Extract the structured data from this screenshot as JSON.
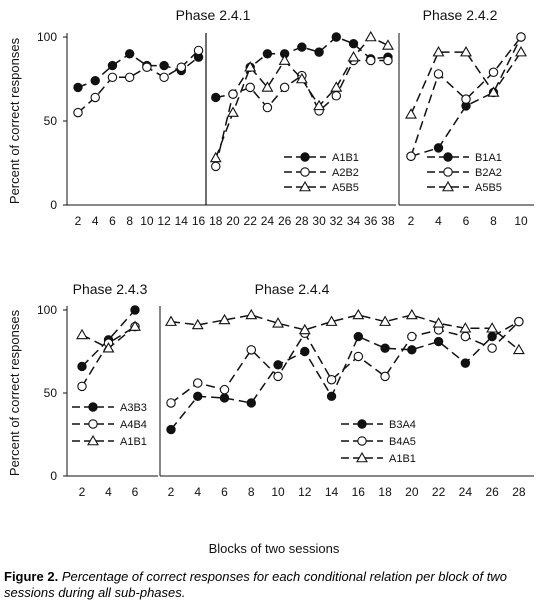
{
  "xlabel": "Blocks of two sessions",
  "caption": {
    "label": "Figure 2.",
    "text": "Percentage of correct responses for each conditional relation per block of two sessions during all sub-phases."
  },
  "chart_data": [
    {
      "type": "line",
      "title": "Phase 2.4.1",
      "ylabel": "Percent of correct responses",
      "ylim": [
        0,
        100
      ],
      "yticks": [
        0,
        50,
        100
      ],
      "x_ticks": [
        2,
        4,
        6,
        8,
        10,
        12,
        14,
        16,
        18,
        20,
        22,
        24,
        26,
        28,
        30,
        32,
        34,
        36,
        38
      ],
      "series": [
        {
          "name": "A1B1",
          "marker": "filled-circle",
          "segments": [
            {
              "x": [
                2,
                4,
                6,
                8,
                10,
                12,
                14,
                16
              ],
              "y": [
                70,
                74,
                83,
                90,
                83,
                83,
                80,
                88
              ]
            },
            {
              "x": [
                18,
                20,
                22,
                24,
                26,
                28,
                30,
                32,
                34,
                36,
                38
              ],
              "y": [
                64,
                66,
                82,
                90,
                90,
                94,
                91,
                100,
                96,
                87,
                88
              ]
            }
          ]
        },
        {
          "name": "A2B2",
          "marker": "open-circle",
          "segments": [
            {
              "x": [
                2,
                4,
                6,
                8,
                10,
                12,
                14,
                16
              ],
              "y": [
                55,
                64,
                76,
                76,
                82,
                76,
                82,
                92
              ]
            },
            {
              "x": [
                18,
                20,
                22,
                24,
                26,
                28,
                30,
                32,
                34,
                36,
                38
              ],
              "y": [
                23,
                66,
                70,
                58,
                70,
                77,
                56,
                65,
                86,
                86,
                86
              ]
            }
          ]
        },
        {
          "name": "A5B5",
          "marker": "open-triangle",
          "segments": [
            {
              "x": [
                18,
                20,
                22,
                24,
                26,
                28,
                30,
                32,
                34,
                36,
                38
              ],
              "y": [
                28,
                55,
                82,
                70,
                86,
                75,
                59,
                70,
                88,
                100,
                95
              ]
            }
          ]
        }
      ],
      "legend_position": "bottom-right"
    },
    {
      "type": "line",
      "title": "Phase 2.4.2",
      "ylim": [
        0,
        100
      ],
      "x_ticks": [
        2,
        4,
        6,
        8,
        10
      ],
      "series": [
        {
          "name": "B1A1",
          "marker": "filled-circle",
          "x": [
            2,
            4,
            6,
            8,
            10
          ],
          "y": [
            29,
            34,
            59,
            67,
            100
          ]
        },
        {
          "name": "B2A2",
          "marker": "open-circle",
          "x": [
            2,
            4,
            6,
            8,
            10
          ],
          "y": [
            29,
            78,
            63,
            79,
            100
          ]
        },
        {
          "name": "A5B5",
          "marker": "open-triangle",
          "x": [
            2,
            4,
            6,
            8,
            10
          ],
          "y": [
            54,
            91,
            91,
            67,
            91
          ]
        }
      ],
      "legend_position": "bottom-right"
    },
    {
      "type": "line",
      "title": "Phase 2.4.3",
      "ylabel": "Percent of correct responses",
      "ylim": [
        0,
        100
      ],
      "yticks": [
        0,
        50,
        100
      ],
      "x_ticks": [
        2,
        4,
        6
      ],
      "series": [
        {
          "name": "A3B3",
          "marker": "filled-circle",
          "x": [
            2,
            4,
            6
          ],
          "y": [
            66,
            82,
            100
          ]
        },
        {
          "name": "A4B4",
          "marker": "open-circle",
          "x": [
            2,
            4,
            6
          ],
          "y": [
            54,
            80,
            90
          ]
        },
        {
          "name": "A1B1",
          "marker": "open-triangle",
          "x": [
            2,
            4,
            6
          ],
          "y": [
            85,
            77,
            90
          ]
        }
      ],
      "legend_position": "bottom-left"
    },
    {
      "type": "line",
      "title": "Phase 2.4.4",
      "ylim": [
        0,
        100
      ],
      "x_ticks": [
        2,
        4,
        6,
        8,
        10,
        12,
        14,
        16,
        18,
        20,
        22,
        24,
        26,
        28
      ],
      "series": [
        {
          "name": "B3A4",
          "marker": "filled-circle",
          "x": [
            2,
            4,
            6,
            8,
            10,
            12,
            14,
            16,
            18,
            20,
            22,
            24,
            26,
            28
          ],
          "y": [
            28,
            48,
            47,
            44,
            67,
            75,
            48,
            84,
            77,
            76,
            81,
            68,
            84,
            93
          ]
        },
        {
          "name": "B4A5",
          "marker": "open-circle",
          "x": [
            2,
            4,
            6,
            8,
            10,
            12,
            14,
            16,
            18,
            20,
            22,
            24,
            26,
            28
          ],
          "y": [
            44,
            56,
            52,
            76,
            60,
            86,
            58,
            72,
            60,
            84,
            88,
            84,
            77,
            93
          ]
        },
        {
          "name": "A1B1",
          "marker": "open-triangle",
          "x": [
            2,
            4,
            6,
            8,
            10,
            12,
            14,
            16,
            18,
            20,
            22,
            24,
            26,
            28
          ],
          "y": [
            93,
            91,
            94,
            97,
            92,
            88,
            93,
            97,
            93,
            97,
            92,
            89,
            89,
            76
          ]
        }
      ],
      "legend_position": "bottom-right"
    }
  ]
}
